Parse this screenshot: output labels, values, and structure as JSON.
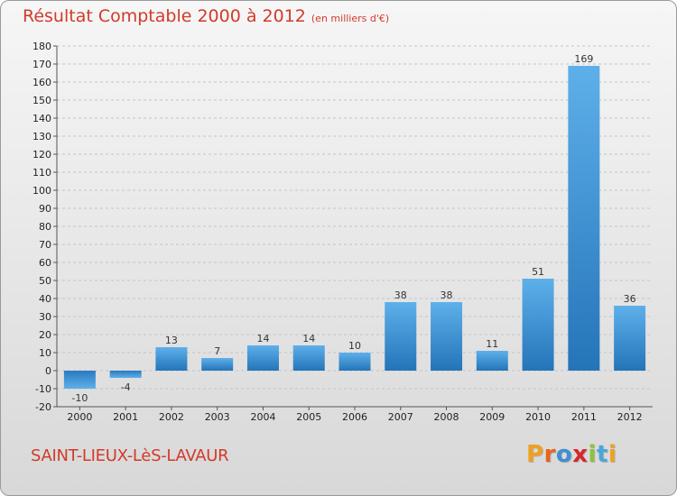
{
  "header": {
    "title": "Résultat Comptable 2000 à 2012",
    "unit": "(en milliers d'€)"
  },
  "footer": {
    "commune": "SAINT-LIEUX-LèS-LAVAUR",
    "brand": "Proxiti",
    "brand_letters": [
      "P",
      "r",
      "o",
      "x",
      "i",
      "t",
      "i"
    ],
    "brand_colors": [
      "#f0a020",
      "#e8641e",
      "#3d8fd0",
      "#d8262d",
      "#8cc23c",
      "#4aa7da",
      "#f0a020"
    ]
  },
  "chart_data": {
    "type": "bar",
    "title": "Résultat Comptable 2000 à 2012",
    "categories": [
      "2000",
      "2001",
      "2002",
      "2003",
      "2004",
      "2005",
      "2006",
      "2007",
      "2008",
      "2009",
      "2010",
      "2011",
      "2012"
    ],
    "values": [
      -10,
      -4,
      13,
      7,
      14,
      14,
      10,
      38,
      38,
      11,
      51,
      169,
      36
    ],
    "ylim": [
      -20,
      180
    ],
    "yticks": [
      -20,
      -10,
      0,
      10,
      20,
      30,
      40,
      50,
      60,
      70,
      80,
      90,
      100,
      110,
      120,
      130,
      140,
      150,
      160,
      170,
      180
    ],
    "grid": "horizontal dashed",
    "bar_color": "#3f92d6"
  }
}
